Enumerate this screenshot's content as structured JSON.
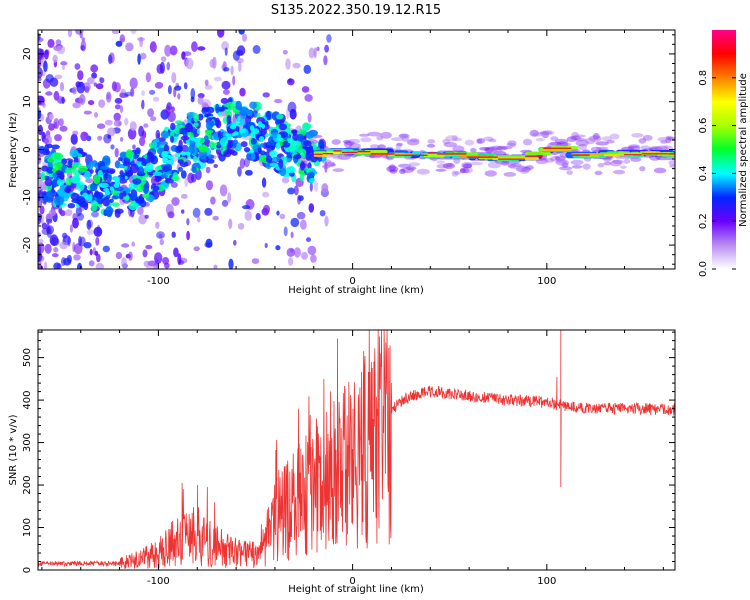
{
  "title": "S135.2022.350.19.12.R15",
  "chart_data": [
    {
      "type": "heatmap",
      "xlabel": "Height of straight line (km)",
      "ylabel": "Frequency (Hz)",
      "xlim": [
        -162,
        166
      ],
      "ylim": [
        -25,
        25
      ],
      "xticks": [
        -100,
        0,
        100
      ],
      "yticks": [
        -20,
        -10,
        0,
        10,
        20
      ],
      "colorbar": {
        "label": "Normalized spectral amplitude",
        "range": [
          0,
          1
        ],
        "ticks": [
          0.0,
          0.2,
          0.4,
          0.6,
          0.8
        ],
        "colormap": [
          "#ffffff",
          "#b98cf2",
          "#6a00ff",
          "#0026ff",
          "#00ffff",
          "#00ff2a",
          "#aaff00",
          "#ffff00",
          "#ff7f00",
          "#ff0000",
          "#ff0088"
        ]
      },
      "ridge": [
        {
          "x": -162,
          "y": -5
        },
        {
          "x": -140,
          "y": -6
        },
        {
          "x": -125,
          "y": -8
        },
        {
          "x": -110,
          "y": -6
        },
        {
          "x": -100,
          "y": -3
        },
        {
          "x": -90,
          "y": 0
        },
        {
          "x": -80,
          "y": 2
        },
        {
          "x": -70,
          "y": 4
        },
        {
          "x": -60,
          "y": 5
        },
        {
          "x": -50,
          "y": 4
        },
        {
          "x": -40,
          "y": 2
        },
        {
          "x": -30,
          "y": 0
        },
        {
          "x": -20,
          "y": -1
        },
        {
          "x": -10,
          "y": -0.5
        },
        {
          "x": 0,
          "y": -0.5
        },
        {
          "x": 20,
          "y": -1
        },
        {
          "x": 40,
          "y": -1
        },
        {
          "x": 60,
          "y": -1.5
        },
        {
          "x": 80,
          "y": -2
        },
        {
          "x": 90,
          "y": -1
        },
        {
          "x": 100,
          "y": 0.5
        },
        {
          "x": 110,
          "y": -1
        },
        {
          "x": 130,
          "y": -1
        },
        {
          "x": 150,
          "y": -1
        },
        {
          "x": 166,
          "y": -1
        }
      ]
    },
    {
      "type": "line",
      "xlabel": "Height of straight line (km)",
      "ylabel": "SNR (10 * v/v)",
      "xlim": [
        -162,
        166
      ],
      "ylim": [
        0,
        565
      ],
      "xticks": [
        -100,
        0,
        100
      ],
      "yticks": [
        0,
        100,
        200,
        300,
        400,
        500
      ],
      "series_color": "#ee3333",
      "envelope": [
        {
          "x": -162,
          "y": 15
        },
        {
          "x": -120,
          "y": 15
        },
        {
          "x": -110,
          "y": 25
        },
        {
          "x": -100,
          "y": 40
        },
        {
          "x": -90,
          "y": 70
        },
        {
          "x": -80,
          "y": 80
        },
        {
          "x": -70,
          "y": 55
        },
        {
          "x": -60,
          "y": 40
        },
        {
          "x": -50,
          "y": 35
        },
        {
          "x": -40,
          "y": 110
        },
        {
          "x": -30,
          "y": 160
        },
        {
          "x": -20,
          "y": 200
        },
        {
          "x": -10,
          "y": 230
        },
        {
          "x": 0,
          "y": 260
        },
        {
          "x": 10,
          "y": 320
        },
        {
          "x": 20,
          "y": 380
        },
        {
          "x": 30,
          "y": 410
        },
        {
          "x": 40,
          "y": 420
        },
        {
          "x": 60,
          "y": 410
        },
        {
          "x": 80,
          "y": 400
        },
        {
          "x": 100,
          "y": 395
        },
        {
          "x": 110,
          "y": 385
        },
        {
          "x": 130,
          "y": 380
        },
        {
          "x": 166,
          "y": 378
        }
      ],
      "spikes": [
        {
          "x": -88,
          "y": 205
        },
        {
          "x": -80,
          "y": 200
        },
        {
          "x": -75,
          "y": 195
        },
        {
          "x": -28,
          "y": 380
        },
        {
          "x": -15,
          "y": 450
        },
        {
          "x": -8,
          "y": 545
        },
        {
          "x": 0,
          "y": 380
        },
        {
          "x": 105,
          "y": 455
        },
        {
          "x": 107,
          "y": 565
        },
        {
          "x": 107,
          "y": 195
        }
      ]
    }
  ]
}
